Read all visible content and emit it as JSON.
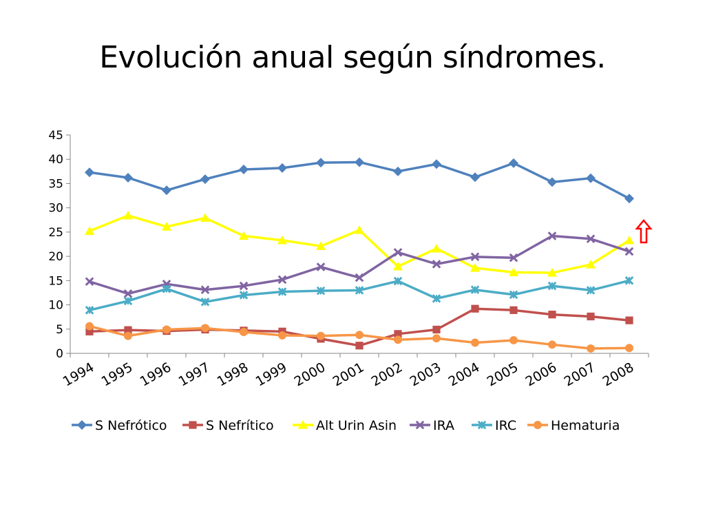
{
  "title": "Evolución anual según síndromes.",
  "chart_data": {
    "type": "line",
    "title": "",
    "xlabel": "",
    "ylabel": "",
    "categories": [
      "1994",
      "1995",
      "1996",
      "1997",
      "1998",
      "1999",
      "2000",
      "2001",
      "2002",
      "2003",
      "2004",
      "2005",
      "2006",
      "2007",
      "2008"
    ],
    "ylim": [
      0,
      45
    ],
    "yticks": [
      0,
      5,
      10,
      15,
      20,
      25,
      30,
      35,
      40,
      45
    ],
    "grid": false,
    "legend_position": "bottom",
    "series": [
      {
        "name": "S Nefrótico",
        "color": "#4f81bd",
        "marker": "diamond",
        "values": [
          37.3,
          36.2,
          33.6,
          35.9,
          37.9,
          38.2,
          39.3,
          39.4,
          37.5,
          39.0,
          36.3,
          39.2,
          35.3,
          36.1,
          31.9
        ]
      },
      {
        "name": "S Nefrítico",
        "color": "#c0504d",
        "marker": "square",
        "values": [
          4.5,
          4.8,
          4.6,
          4.9,
          4.7,
          4.5,
          3.0,
          1.6,
          4.0,
          4.9,
          9.2,
          8.9,
          8.0,
          7.6,
          6.8
        ]
      },
      {
        "name": "Alt Urin Asin",
        "color": "#ffff00",
        "marker": "triangle",
        "values": [
          25.2,
          28.4,
          26.1,
          27.9,
          24.2,
          23.3,
          22.1,
          25.4,
          17.9,
          21.6,
          17.6,
          16.7,
          16.6,
          18.3,
          23.3
        ]
      },
      {
        "name": "IRA",
        "color": "#8064a2",
        "marker": "x",
        "values": [
          14.8,
          12.3,
          14.3,
          13.1,
          13.9,
          15.2,
          17.8,
          15.6,
          20.8,
          18.4,
          19.9,
          19.7,
          24.2,
          23.6,
          21.0
        ]
      },
      {
        "name": "IRC",
        "color": "#4bacc6",
        "marker": "star",
        "values": [
          8.9,
          10.8,
          13.3,
          10.6,
          12.0,
          12.7,
          12.9,
          13.0,
          14.9,
          11.3,
          13.1,
          12.1,
          13.9,
          13.0,
          15.0
        ]
      },
      {
        "name": "Hematuria",
        "color": "#f79646",
        "marker": "circle",
        "values": [
          5.6,
          3.6,
          4.9,
          5.2,
          4.4,
          3.7,
          3.6,
          3.8,
          2.8,
          3.1,
          2.2,
          2.7,
          1.8,
          1.0,
          1.1
        ]
      }
    ],
    "annotation": {
      "name": "up-arrow",
      "color": "#ff0000"
    }
  }
}
